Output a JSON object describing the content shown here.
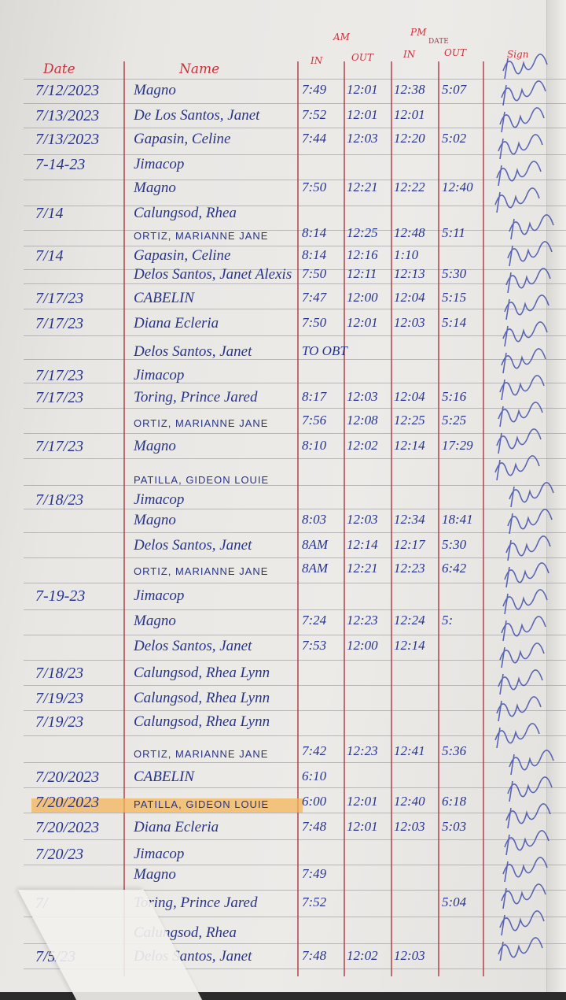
{
  "header": {
    "date_label": "Date",
    "name_label": "Name",
    "am_label": "AM",
    "pm_label": "PM",
    "am_in_label": "IN",
    "am_out_label": "OUT",
    "pm_in_label": "IN",
    "pm_out_label": "OUT",
    "date_print": "DATE",
    "sign_label": "Sign"
  },
  "colors": {
    "ink": "#27348a",
    "rule": "#c9333b",
    "highlight": "#f3b55a"
  },
  "rows": [
    {
      "date": "7/12/2023",
      "name": "Magno",
      "am_in": "7:49",
      "am_out": "12:01",
      "pm_in": "12:38",
      "pm_out": "5:07"
    },
    {
      "date": "7/13/2023",
      "name": "De Los Santos, Janet",
      "am_in": "7:52",
      "am_out": "12:01",
      "pm_in": "12:01",
      "pm_out": ""
    },
    {
      "date": "7/13/2023",
      "name": "Gapasin, Celine",
      "am_in": "7:44",
      "am_out": "12:03",
      "pm_in": "12:20",
      "pm_out": "5:02"
    },
    {
      "date": "7-14-23",
      "name": "Jimacop",
      "am_in": "",
      "am_out": "",
      "pm_in": "",
      "pm_out": ""
    },
    {
      "date": "",
      "name": "Magno",
      "am_in": "7:50",
      "am_out": "12:21",
      "pm_in": "12:22",
      "pm_out": "12:40"
    },
    {
      "date": "7/14",
      "name": "Calungsod, Rhea",
      "am_in": "",
      "am_out": "",
      "pm_in": "",
      "pm_out": ""
    },
    {
      "date": "",
      "name": "ORTIZ, MARIANNE JANE",
      "caps": true,
      "am_in": "8:14",
      "am_out": "12:25",
      "pm_in": "12:48",
      "pm_out": "5:11"
    },
    {
      "date": "7/14",
      "name": "Gapasin, Celine",
      "am_in": "8:14",
      "am_out": "12:16",
      "pm_in": "1:10",
      "pm_out": ""
    },
    {
      "date": "",
      "name": "Delos Santos, Janet Alexis",
      "am_in": "7:50",
      "am_out": "12:11",
      "pm_in": "12:13",
      "pm_out": "5:30"
    },
    {
      "date": "7/17/23",
      "name": "CABELIN",
      "am_in": "7:47",
      "am_out": "12:00",
      "pm_in": "12:04",
      "pm_out": "5:15"
    },
    {
      "date": "7/17/23",
      "name": "Diana Ecleria",
      "am_in": "7:50",
      "am_out": "12:01",
      "pm_in": "12:03",
      "pm_out": "5:14"
    },
    {
      "date": "",
      "name": "Delos Santos, Janet",
      "am_in": "TO OBT",
      "am_out": "",
      "pm_in": "",
      "pm_out": ""
    },
    {
      "date": "7/17/23",
      "name": "Jimacop",
      "am_in": "",
      "am_out": "",
      "pm_in": "",
      "pm_out": ""
    },
    {
      "date": "7/17/23",
      "name": "Toring, Prince Jared",
      "am_in": "8:17",
      "am_out": "12:03",
      "pm_in": "12:04",
      "pm_out": "5:16"
    },
    {
      "date": "",
      "name": "ORTIZ, MARIANNE JANE",
      "caps": true,
      "am_in": "7:56",
      "am_out": "12:08",
      "pm_in": "12:25",
      "pm_out": "5:25"
    },
    {
      "date": "7/17/23",
      "name": "Magno",
      "am_in": "8:10",
      "am_out": "12:02",
      "pm_in": "12:14",
      "pm_out": "17:29"
    },
    {
      "date": "",
      "name": "PATILLA, GIDEON LOUIE",
      "caps": true,
      "am_in": "",
      "am_out": "",
      "pm_in": "",
      "pm_out": ""
    },
    {
      "date": "7/18/23",
      "name": "Jimacop",
      "am_in": "",
      "am_out": "",
      "pm_in": "",
      "pm_out": ""
    },
    {
      "date": "",
      "name": "Magno",
      "am_in": "8:03",
      "am_out": "12:03",
      "pm_in": "12:34",
      "pm_out": "18:41"
    },
    {
      "date": "",
      "name": "Delos Santos, Janet",
      "am_in": "8AM",
      "am_out": "12:14",
      "pm_in": "12:17",
      "pm_out": "5:30"
    },
    {
      "date": "",
      "name": "ORTIZ, MARIANNE JANE",
      "caps": true,
      "am_in": "8AM",
      "am_out": "12:21",
      "pm_in": "12:23",
      "pm_out": "6:42"
    },
    {
      "date": "7-19-23",
      "name": "Jimacop",
      "am_in": "",
      "am_out": "",
      "pm_in": "",
      "pm_out": ""
    },
    {
      "date": "",
      "name": "Magno",
      "am_in": "7:24",
      "am_out": "12:23",
      "pm_in": "12:24",
      "pm_out": "5:"
    },
    {
      "date": "",
      "name": "Delos Santos, Janet",
      "am_in": "7:53",
      "am_out": "12:00",
      "pm_in": "12:14",
      "pm_out": ""
    },
    {
      "date": "7/18/23",
      "name": "Calungsod, Rhea Lynn",
      "am_in": "",
      "am_out": "",
      "pm_in": "",
      "pm_out": ""
    },
    {
      "date": "7/19/23",
      "name": "Calungsod, Rhea Lynn",
      "am_in": "",
      "am_out": "",
      "pm_in": "",
      "pm_out": ""
    },
    {
      "date": "7/19/23",
      "name": "Calungsod, Rhea Lynn",
      "am_in": "",
      "am_out": "",
      "pm_in": "",
      "pm_out": ""
    },
    {
      "date": "",
      "name": "ORTIZ, MARIANNE JANE",
      "caps": true,
      "am_in": "7:42",
      "am_out": "12:23",
      "pm_in": "12:41",
      "pm_out": "5:36"
    },
    {
      "date": "7/20/2023",
      "name": "CABELIN",
      "am_in": "6:10",
      "am_out": "",
      "pm_in": "",
      "pm_out": ""
    },
    {
      "date": "7/20/2023",
      "name": "PATILLA, GIDEON LOUIE",
      "caps": true,
      "highlight": true,
      "am_in": "6:00",
      "am_out": "12:01",
      "pm_in": "12:40",
      "pm_out": "6:18"
    },
    {
      "date": "7/20/2023",
      "name": "Diana Ecleria",
      "am_in": "7:48",
      "am_out": "12:01",
      "pm_in": "12:03",
      "pm_out": "5:03"
    },
    {
      "date": "7/20/23",
      "name": "Jimacop",
      "am_in": "",
      "am_out": "",
      "pm_in": "",
      "pm_out": ""
    },
    {
      "date": "",
      "name": "Magno",
      "am_in": "7:49",
      "am_out": "",
      "pm_in": "",
      "pm_out": ""
    },
    {
      "date": "7/",
      "name": "Toring, Prince Jared",
      "am_in": "7:52",
      "am_out": "",
      "pm_in": "",
      "pm_out": "5:04"
    },
    {
      "date": "",
      "name": "Calungsod, Rhea",
      "am_in": "",
      "am_out": "",
      "pm_in": "",
      "pm_out": ""
    },
    {
      "date": "7/5/23",
      "name": "Delos Santos, Janet",
      "am_in": "7:48",
      "am_out": "12:02",
      "pm_in": "12:03",
      "pm_out": ""
    }
  ]
}
